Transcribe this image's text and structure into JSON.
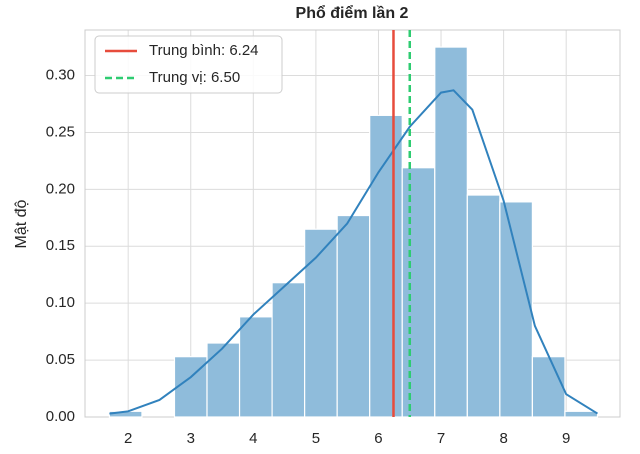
{
  "chart_data": {
    "type": "histogram",
    "title": "Phổ điểm lần 2",
    "y_label": "Mật độ",
    "bins": [
      1.7,
      2.22,
      2.74,
      3.26,
      3.78,
      4.3,
      4.82,
      5.34,
      5.86,
      6.38,
      6.9,
      7.42,
      7.94,
      8.46,
      8.98,
      9.5
    ],
    "values": [
      0.005,
      0,
      0.053,
      0.065,
      0.088,
      0.118,
      0.165,
      0.177,
      0.265,
      0.219,
      0.325,
      0.195,
      0.189,
      0.053,
      0.005
    ],
    "color": "#8fbcdb",
    "kde": {
      "color": "#3182bd",
      "x": [
        1.7,
        2.0,
        2.5,
        3.0,
        3.5,
        4.0,
        4.5,
        5.0,
        5.5,
        6.0,
        6.5,
        7.0,
        7.2,
        7.5,
        8.0,
        8.5,
        9.0,
        9.5
      ],
      "values": [
        0.003,
        0.005,
        0.015,
        0.035,
        0.06,
        0.09,
        0.115,
        0.14,
        0.17,
        0.215,
        0.255,
        0.285,
        0.287,
        0.27,
        0.19,
        0.08,
        0.02,
        0.003
      ]
    },
    "vlines": [
      {
        "name": "Trung bình: 6.24",
        "value": 6.24,
        "color": "#e74c3c",
        "dashed": false
      },
      {
        "name": "Trung vị: 6.50",
        "value": 6.5,
        "color": "#2ecc71",
        "dashed": true
      }
    ],
    "xlim": [
      1.31,
      9.86
    ],
    "ylim": [
      0,
      0.34
    ],
    "xticks": [
      2,
      3,
      4,
      5,
      6,
      7,
      8,
      9
    ],
    "yticks": [
      {
        "value": 0,
        "label": "0.00"
      },
      0.05,
      {
        "value": 0.1,
        "label": "0.10"
      },
      0.15,
      {
        "value": 0.2,
        "label": "0.20"
      },
      0.25,
      {
        "value": 0.3,
        "label": "0.30"
      }
    ],
    "grid": true,
    "legend": "upper left"
  }
}
